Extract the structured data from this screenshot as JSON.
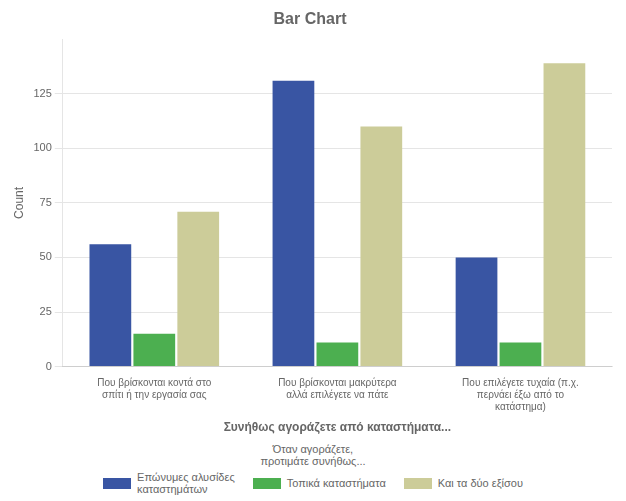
{
  "chart_data": {
    "type": "bar",
    "title": "Bar Chart",
    "xlabel": "Συνήθως αγοράζετε από καταστήματα...",
    "ylabel": "Count",
    "categories": [
      "Που βρίσκονται κοντά στο\nσπίτι ή την εργασία σας",
      "Που βρίσκονται μακρύτερα\nαλλά επιλέγετε να πάτε",
      "Που επιλέγετε τυχαία (π.χ.\nπερνάει έξω από το\nκατάστημα)"
    ],
    "legend_title": "Όταν αγοράζετε,\nπροτιμάτε συνήθως...",
    "series": [
      {
        "name": "Επώνυμες αλυσίδες\nκαταστημάτων",
        "color": "#3955A3",
        "values": [
          56,
          131,
          50
        ]
      },
      {
        "name": "Τοπικά καταστήματα",
        "color": "#4CAF50",
        "values": [
          15,
          11,
          11
        ]
      },
      {
        "name": "Και τα δύο εξίσου",
        "color": "#CCCC99",
        "values": [
          71,
          110,
          139
        ]
      }
    ],
    "ylim": [
      0,
      150
    ],
    "yticks": [
      0,
      25,
      50,
      75,
      100,
      125
    ],
    "grid": true
  }
}
